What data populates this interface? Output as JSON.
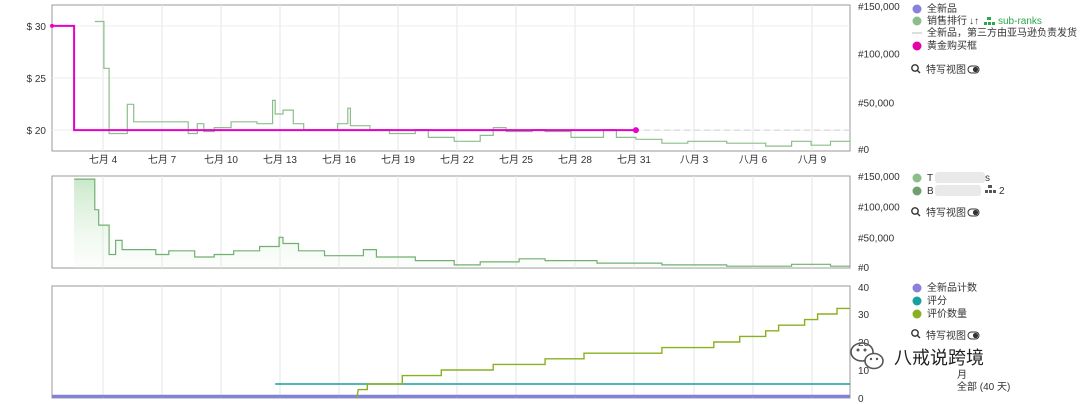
{
  "chart_data": [
    {
      "type": "line",
      "panel": "top",
      "x_ticks": [
        "七月 4",
        "七月 7",
        "七月 10",
        "七月 13",
        "七月 16",
        "七月 19",
        "七月 22",
        "七月 25",
        "七月 28",
        "七月 31",
        "八月 3",
        "八月 6",
        "八月 9"
      ],
      "y_left_ticks": [
        "$ 30",
        "$ 25",
        "$ 20"
      ],
      "y_left_range": [
        18,
        32
      ],
      "y_right_ticks": [
        "#150,000",
        "#100,000",
        "#50,000",
        "#0"
      ],
      "y_right_range": [
        0,
        150000
      ],
      "legend": {
        "new_price": "全新品",
        "sales_rank": "销售排行",
        "sub_ranks": "sub-ranks",
        "third_party": "全新品，第三方由亚马逊负责发货",
        "buy_box": "黄金购买框",
        "visual_label": "特写视图"
      },
      "series": [
        {
          "name": "黄金购买框",
          "color": "#e600c8",
          "axis": "price",
          "points": [
            [
              0,
              30
            ],
            [
              1.7,
              30
            ],
            [
              1.7,
              20
            ],
            [
              45,
              20
            ]
          ]
        },
        {
          "name": "销售排行",
          "color": "#8cbe8c",
          "axis": "rank",
          "points": [
            [
              3.3,
              133000
            ],
            [
              4.0,
              133000
            ],
            [
              4.0,
              85000
            ],
            [
              4.4,
              85000
            ],
            [
              4.4,
              18000
            ],
            [
              5.8,
              18000
            ],
            [
              5.8,
              48000
            ],
            [
              6.3,
              48000
            ],
            [
              6.3,
              30000
            ],
            [
              10.5,
              30000
            ],
            [
              10.5,
              18000
            ],
            [
              11.2,
              18000
            ],
            [
              11.2,
              28000
            ],
            [
              11.7,
              28000
            ],
            [
              11.7,
              20000
            ],
            [
              12.5,
              20000
            ],
            [
              12.5,
              24000
            ],
            [
              13.8,
              24000
            ],
            [
              13.8,
              30000
            ],
            [
              15.8,
              30000
            ],
            [
              15.8,
              28000
            ],
            [
              17.0,
              28000
            ],
            [
              17.0,
              52000
            ],
            [
              17.2,
              52000
            ],
            [
              17.2,
              38000
            ],
            [
              17.8,
              38000
            ],
            [
              17.8,
              42000
            ],
            [
              18.6,
              42000
            ],
            [
              18.6,
              28000
            ],
            [
              19.4,
              28000
            ],
            [
              19.4,
              22000
            ],
            [
              22.0,
              22000
            ],
            [
              22.0,
              28000
            ],
            [
              22.8,
              28000
            ],
            [
              22.8,
              44000
            ],
            [
              23.0,
              44000
            ],
            [
              23.0,
              26000
            ],
            [
              24.5,
              26000
            ],
            [
              24.5,
              22000
            ],
            [
              26.0,
              22000
            ],
            [
              26.0,
              18000
            ],
            [
              28.0,
              18000
            ],
            [
              28.0,
              22000
            ],
            [
              29.0,
              22000
            ],
            [
              29.0,
              14000
            ],
            [
              31.0,
              14000
            ],
            [
              31.0,
              10000
            ],
            [
              33.0,
              10000
            ],
            [
              33.0,
              16000
            ],
            [
              34.0,
              16000
            ],
            [
              34.0,
              24000
            ],
            [
              35.0,
              24000
            ],
            [
              35.0,
              20000
            ],
            [
              37.0,
              20000
            ],
            [
              37.0,
              22000
            ],
            [
              38.0,
              22000
            ],
            [
              38.0,
              20000
            ],
            [
              40.0,
              20000
            ],
            [
              40.0,
              14000
            ],
            [
              42.5,
              14000
            ],
            [
              42.5,
              22000
            ],
            [
              43.5,
              22000
            ],
            [
              43.5,
              14000
            ],
            [
              45.0,
              14000
            ],
            [
              45.0,
              12000
            ],
            [
              47.0,
              12000
            ],
            [
              47.0,
              8000
            ],
            [
              49.0,
              8000
            ],
            [
              49.0,
              10000
            ],
            [
              52.0,
              10000
            ],
            [
              52.0,
              8000
            ],
            [
              55.0,
              8000
            ],
            [
              55.0,
              5000
            ],
            [
              57.0,
              5000
            ],
            [
              57.0,
              10000
            ],
            [
              58.5,
              10000
            ],
            [
              58.5,
              6000
            ],
            [
              60.0,
              6000
            ],
            [
              60.0,
              10000
            ],
            [
              61.5,
              10000
            ],
            [
              61.5,
              7000
            ]
          ]
        }
      ]
    },
    {
      "type": "area",
      "panel": "middle",
      "y_right_ticks": [
        "#150,000",
        "#100,000",
        "#50,000",
        "#0"
      ],
      "y_right_range": [
        0,
        150000
      ],
      "legend": {
        "item1_prefix": "T",
        "item1_suffix": "s",
        "item2_prefix": "B",
        "item2_suffix": "2",
        "visual_label": "特写视图"
      },
      "series": [
        {
          "name": "",
          "color": "#70b070",
          "points": [
            [
              1.7,
              145000
            ],
            [
              3.3,
              145000
            ],
            [
              3.3,
              95000
            ],
            [
              3.6,
              95000
            ],
            [
              3.6,
              70000
            ],
            [
              4.4,
              70000
            ],
            [
              4.4,
              22000
            ],
            [
              4.9,
              22000
            ],
            [
              4.9,
              45000
            ],
            [
              5.4,
              45000
            ],
            [
              5.4,
              30000
            ],
            [
              8.0,
              30000
            ],
            [
              8.0,
              22000
            ],
            [
              9.0,
              22000
            ],
            [
              9.0,
              28000
            ],
            [
              11.0,
              28000
            ],
            [
              11.0,
              18000
            ],
            [
              12.5,
              18000
            ],
            [
              12.5,
              22000
            ],
            [
              14.0,
              22000
            ],
            [
              14.0,
              28000
            ],
            [
              16.0,
              28000
            ],
            [
              16.0,
              35000
            ],
            [
              17.5,
              35000
            ],
            [
              17.5,
              50000
            ],
            [
              17.8,
              50000
            ],
            [
              17.8,
              40000
            ],
            [
              19.0,
              40000
            ],
            [
              19.0,
              28000
            ],
            [
              21.0,
              28000
            ],
            [
              21.0,
              20000
            ],
            [
              24.0,
              20000
            ],
            [
              24.0,
              30000
            ],
            [
              25.0,
              30000
            ],
            [
              25.0,
              18000
            ],
            [
              28.0,
              18000
            ],
            [
              28.0,
              12000
            ],
            [
              31.0,
              12000
            ],
            [
              31.0,
              5000
            ],
            [
              33.0,
              5000
            ],
            [
              33.0,
              10000
            ],
            [
              36.0,
              10000
            ],
            [
              36.0,
              15000
            ],
            [
              38.0,
              15000
            ],
            [
              38.0,
              12000
            ],
            [
              42.0,
              12000
            ],
            [
              42.0,
              8000
            ],
            [
              47.0,
              8000
            ],
            [
              47.0,
              5000
            ],
            [
              52.0,
              5000
            ],
            [
              52.0,
              3000
            ],
            [
              57.0,
              3000
            ],
            [
              57.0,
              6000
            ],
            [
              60.0,
              6000
            ],
            [
              60.0,
              3000
            ],
            [
              61.5,
              3000
            ]
          ]
        }
      ]
    },
    {
      "type": "line",
      "panel": "bottom",
      "y_right_ticks": [
        "40",
        "30",
        "20",
        "10",
        "0"
      ],
      "y_right_range": [
        0,
        40
      ],
      "legend": {
        "new_count": "全新品计数",
        "rating": "评分",
        "review_count": "评价数量",
        "visual_label": "特写视图",
        "month_label": "月",
        "all_label": "全部 (40 天)"
      },
      "series": [
        {
          "name": "全新品计数",
          "color": "#8080e0",
          "points": [
            [
              0,
              0.6
            ],
            [
              61.5,
              0.6
            ]
          ]
        },
        {
          "name": "评分",
          "color": "#17a0a0",
          "points": [
            [
              17.2,
              5
            ],
            [
              61.5,
              5
            ]
          ]
        },
        {
          "name": "评价数量",
          "color": "#8ab020",
          "points": [
            [
              23.5,
              0
            ],
            [
              23.6,
              3
            ],
            [
              24.3,
              3
            ],
            [
              24.3,
              5
            ],
            [
              27.0,
              5
            ],
            [
              27.0,
              8
            ],
            [
              30.0,
              8
            ],
            [
              30.0,
              10
            ],
            [
              34.0,
              10
            ],
            [
              34.0,
              12
            ],
            [
              38.0,
              12
            ],
            [
              38.0,
              14
            ],
            [
              41.0,
              14
            ],
            [
              41.0,
              16
            ],
            [
              47.0,
              16
            ],
            [
              47.0,
              18
            ],
            [
              51.0,
              18
            ],
            [
              51.0,
              20
            ],
            [
              53.0,
              20
            ],
            [
              53.0,
              22
            ],
            [
              55.0,
              22
            ],
            [
              55.0,
              24
            ],
            [
              56.0,
              24
            ],
            [
              56.0,
              26
            ],
            [
              58.0,
              26
            ],
            [
              58.0,
              28
            ],
            [
              59.0,
              28
            ],
            [
              59.0,
              30
            ],
            [
              60.5,
              30
            ],
            [
              60.5,
              32
            ],
            [
              61.5,
              32
            ]
          ]
        }
      ]
    }
  ],
  "overlay": {
    "brand_text": "八戒说跨境"
  }
}
